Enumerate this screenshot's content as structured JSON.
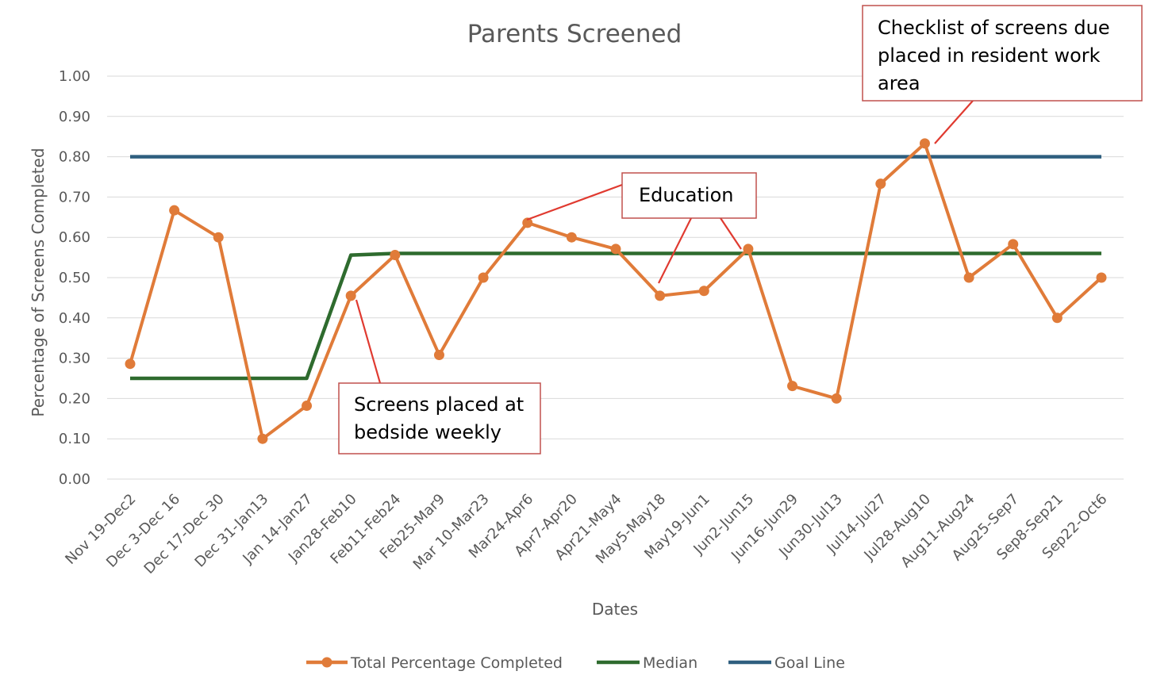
{
  "chart_data": {
    "type": "line",
    "title": "Parents Screened",
    "xlabel": "Dates",
    "ylabel": "Percentage of Screens Completed",
    "ylim": [
      0,
      1
    ],
    "yticks": [
      "0.00",
      "0.10",
      "0.20",
      "0.30",
      "0.40",
      "0.50",
      "0.60",
      "0.70",
      "0.80",
      "0.90",
      "1.00"
    ],
    "grid": true,
    "legend_position": "bottom",
    "categories": [
      "Nov 19-Dec2",
      "Dec 3-Dec 16",
      "Dec 17-Dec 30",
      "Dec 31-Jan13",
      "Jan 14-Jan27",
      "Jan28-Feb10",
      "Feb11-Feb24",
      "Feb25-Mar9",
      "Mar 10-Mar23",
      "Mar24-Apr6",
      "Apr7-Apr20",
      "Apr21-May4",
      "May5-May18",
      "May19-Jun1",
      "Jun2-Jun15",
      "Jun16-Jun29",
      "Jun30-Jul13",
      "Jul14-Jul27",
      "Jul28-Aug10",
      "Aug11-Aug24",
      "Aug25-Sep7",
      "Sep8-Sep21",
      "Sep22-Oct6"
    ],
    "series": [
      {
        "name": "Total Percentage Completed",
        "color": "#e07b39",
        "markers": true,
        "values": [
          0.286,
          0.667,
          0.6,
          0.1,
          0.182,
          0.455,
          0.556,
          0.308,
          0.5,
          0.636,
          0.6,
          0.571,
          0.455,
          0.467,
          0.571,
          0.231,
          0.2,
          0.733,
          0.833,
          0.5,
          0.583,
          0.4,
          0.5
        ]
      },
      {
        "name": "Median",
        "color": "#2e6b2e",
        "markers": false,
        "values": [
          0.25,
          0.25,
          0.25,
          0.25,
          0.25,
          0.556,
          0.56,
          0.56,
          0.56,
          0.56,
          0.56,
          0.56,
          0.56,
          0.56,
          0.56,
          0.56,
          0.56,
          0.56,
          0.56,
          0.56,
          0.56,
          0.56,
          0.56
        ]
      },
      {
        "name": "Goal Line",
        "color": "#2f5f7f",
        "markers": false,
        "values": [
          0.8,
          0.8,
          0.8,
          0.8,
          0.8,
          0.8,
          0.8,
          0.8,
          0.8,
          0.8,
          0.8,
          0.8,
          0.8,
          0.8,
          0.8,
          0.8,
          0.8,
          0.8,
          0.8,
          0.8,
          0.8,
          0.8,
          0.8
        ]
      }
    ],
    "annotations": [
      {
        "lines": [
          "Checklist of screens due",
          "placed in resident work",
          "area"
        ],
        "points_to": [
          "Jul28-Aug10"
        ]
      },
      {
        "lines": [
          "Education"
        ],
        "points_to": [
          "Mar24-Apr6",
          "May5-May18",
          "Jun2-Jun15"
        ]
      },
      {
        "lines": [
          "Screens placed at",
          "bedside weekly"
        ],
        "points_to": [
          "Jan28-Feb10"
        ]
      }
    ]
  }
}
